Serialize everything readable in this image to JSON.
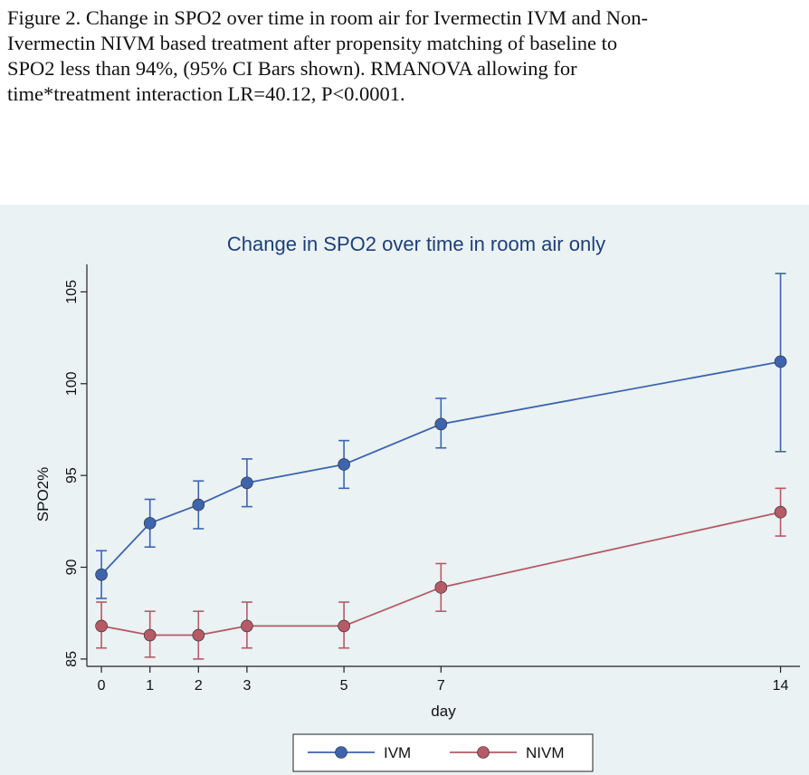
{
  "caption": {
    "lines": [
      "Figure 2. Change in SPO2 over time in room air for Ivermectin IVM and Non-",
      "Ivermectin NIVM based treatment after propensity matching of baseline to",
      "SPO2 less than 94%, (95% CI Bars shown). RMANOVA allowing for",
      "time*treatment  interaction LR=40.12, P<0.0001."
    ]
  },
  "chart_data": {
    "type": "line",
    "title": "Change in SPO2 over time in room air only",
    "xlabel": "day",
    "ylabel": "SPO2%",
    "x": [
      0,
      1,
      2,
      3,
      5,
      7,
      14
    ],
    "xticks": [
      "0",
      "1",
      "2",
      "3",
      "5",
      "7",
      "14"
    ],
    "yticks": [
      "85",
      "90",
      "95",
      "100",
      "105"
    ],
    "ylim": [
      84.6,
      106.5
    ],
    "xlim": [
      -0.3,
      14.4
    ],
    "legend_position": "bottom",
    "grid": false,
    "series": [
      {
        "name": "IVM",
        "color": "#3d64ad",
        "values": [
          89.6,
          92.4,
          93.4,
          94.6,
          95.6,
          97.8,
          101.2
        ],
        "ci_low": [
          88.3,
          91.1,
          92.1,
          93.3,
          94.3,
          96.5,
          96.3
        ],
        "ci_high": [
          90.9,
          93.7,
          94.7,
          95.9,
          96.9,
          99.2,
          106.0
        ]
      },
      {
        "name": "NIVM",
        "color": "#b55a66",
        "values": [
          86.8,
          86.3,
          86.3,
          86.8,
          86.8,
          88.9,
          93.0
        ],
        "ci_low": [
          85.6,
          85.1,
          85.0,
          85.6,
          85.6,
          87.6,
          91.7
        ],
        "ci_high": [
          88.1,
          87.6,
          87.6,
          88.1,
          88.1,
          90.2,
          94.3
        ]
      }
    ]
  }
}
